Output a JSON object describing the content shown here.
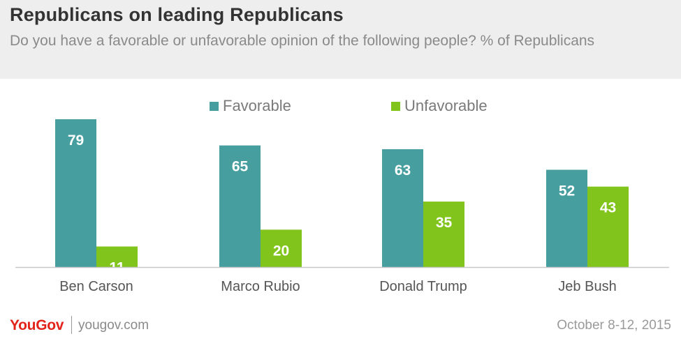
{
  "header": {
    "title": "Republicans on leading Republicans",
    "subtitle": "Do you have a favorable or unfavorable opinion of the following people? % of Republicans"
  },
  "footer": {
    "brand": "YouGov",
    "url": "yougov.com",
    "date": "October 8-12, 2015"
  },
  "colors": {
    "favorable": "#469e9f",
    "unfavorable": "#80c41c",
    "label_text": "#ffffff",
    "axis": "#c8c8c8"
  },
  "chart_data": {
    "type": "bar",
    "categories": [
      "Ben Carson",
      "Marco Rubio",
      "Donald Trump",
      "Jeb Bush"
    ],
    "series": [
      {
        "name": "Favorable",
        "values": [
          79,
          65,
          63,
          52
        ]
      },
      {
        "name": "Unfavorable",
        "values": [
          11,
          20,
          35,
          43
        ]
      }
    ],
    "title": "Republicans on leading Republicans",
    "xlabel": "",
    "ylabel": "",
    "ylim": [
      0,
      79
    ],
    "grid": false,
    "legend": "top-center",
    "data_labels": true
  }
}
